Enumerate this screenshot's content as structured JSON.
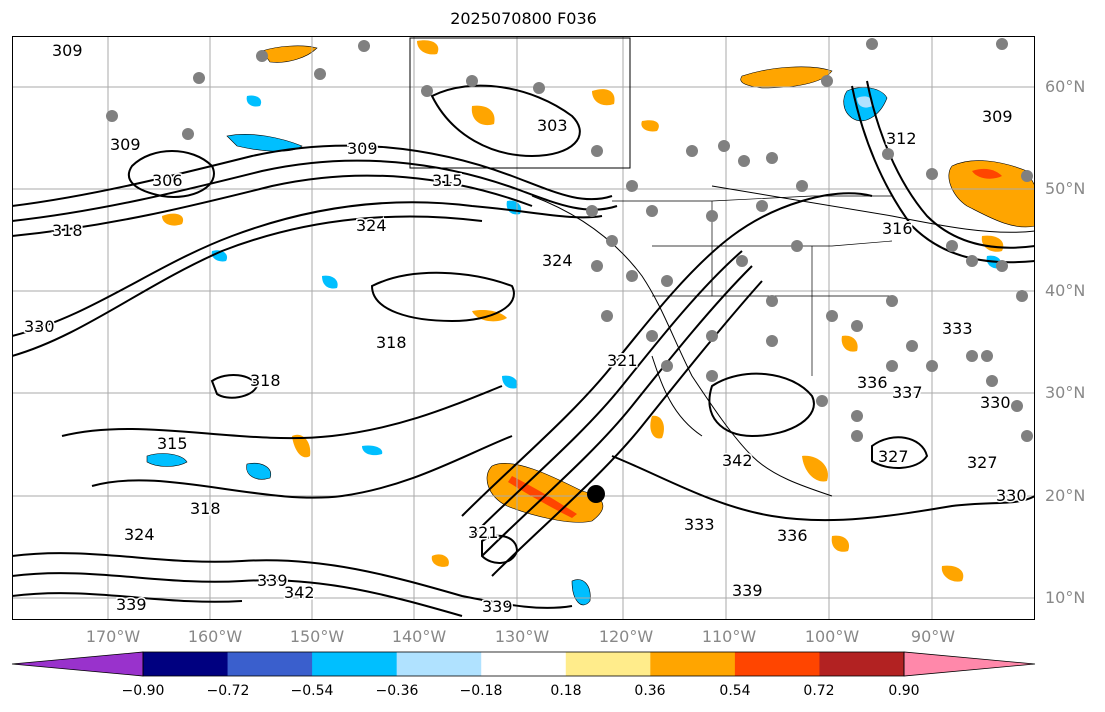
{
  "title": "2025070800 F036",
  "lat_labels": [
    "60°N",
    "50°N",
    "40°N",
    "30°N",
    "20°N",
    "10°N"
  ],
  "lon_labels": [
    "170°W",
    "160°W",
    "150°W",
    "140°W",
    "130°W",
    "120°W",
    "110°W",
    "100°W",
    "90°W"
  ],
  "contour_labels": [
    "309",
    "309",
    "306",
    "303",
    "309",
    "315",
    "324",
    "324",
    "318",
    "330",
    "318",
    "318",
    "315",
    "318",
    "324",
    "321",
    "339",
    "339",
    "342",
    "342",
    "333",
    "339",
    "336",
    "327",
    "327",
    "330",
    "336",
    "337",
    "333",
    "330",
    "312",
    "309",
    "316",
    "339",
    "321"
  ],
  "colorbar": {
    "ticks": [
      "−0.90",
      "−0.72",
      "−0.54",
      "−0.36",
      "−0.18",
      "0.18",
      "0.36",
      "0.54",
      "0.72",
      "0.90"
    ],
    "colors": [
      "#9932cc",
      "#000080",
      "#3a5fcd",
      "#00bfff",
      "#b0e2ff",
      "#ffffff",
      "#ffec8b",
      "#ffa500",
      "#ff4500",
      "#b22222",
      "#ff88aa"
    ]
  },
  "colors": {
    "contour": "#000000",
    "grid": "#aaaaaa",
    "stations": "#808080",
    "state_borders": "#000000"
  }
}
